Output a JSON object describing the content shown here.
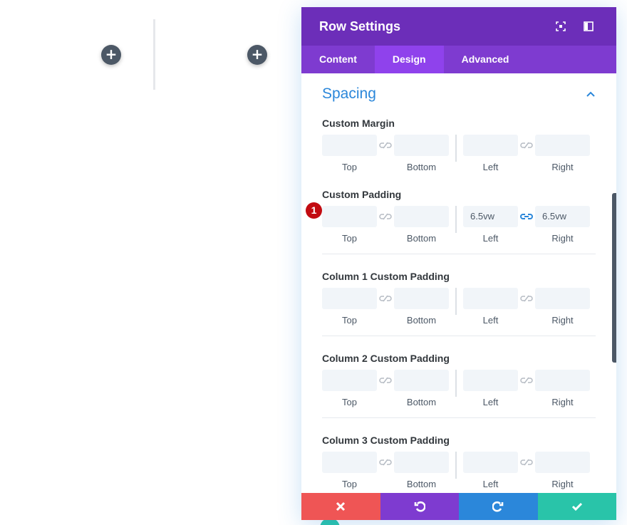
{
  "canvas": {
    "add_symbol": "+"
  },
  "modal": {
    "title": "Row Settings",
    "header_icons": [
      "fullscreen-icon",
      "split-view-icon"
    ],
    "tabs": [
      {
        "label": "Content",
        "active": false
      },
      {
        "label": "Design",
        "active": true
      },
      {
        "label": "Advanced",
        "active": false
      }
    ],
    "section": {
      "title": "Spacing",
      "expanded": true
    },
    "sub_labels": {
      "top": "Top",
      "bottom": "Bottom",
      "left": "Left",
      "right": "Right"
    },
    "fields": {
      "custom_margin": {
        "label": "Custom Margin",
        "top": "",
        "bottom": "",
        "left": "",
        "right": "",
        "lr_linked": false
      },
      "custom_padding": {
        "label": "Custom Padding",
        "top": "",
        "bottom": "",
        "left": "6.5vw",
        "right": "6.5vw",
        "lr_linked": true,
        "step_badge": "1"
      },
      "column_1_padding": {
        "label": "Column 1 Custom Padding",
        "top": "",
        "bottom": "",
        "left": "",
        "right": ""
      },
      "column_2_padding": {
        "label": "Column 2 Custom Padding",
        "top": "",
        "bottom": "",
        "left": "",
        "right": ""
      },
      "column_3_padding": {
        "label": "Column 3 Custom Padding",
        "top": "",
        "bottom": "",
        "left": "",
        "right": ""
      }
    },
    "footer": [
      "discard",
      "undo",
      "redo",
      "save"
    ]
  },
  "colors": {
    "header": "#6c2eb9",
    "tabs": "#7e3bd0",
    "tab_active": "#8f42ec",
    "section_title": "#2b87da",
    "discard": "#ef5555",
    "undo": "#7e3bd0",
    "redo": "#2b87da",
    "save": "#29c4a9",
    "badge": "#c20b11"
  }
}
